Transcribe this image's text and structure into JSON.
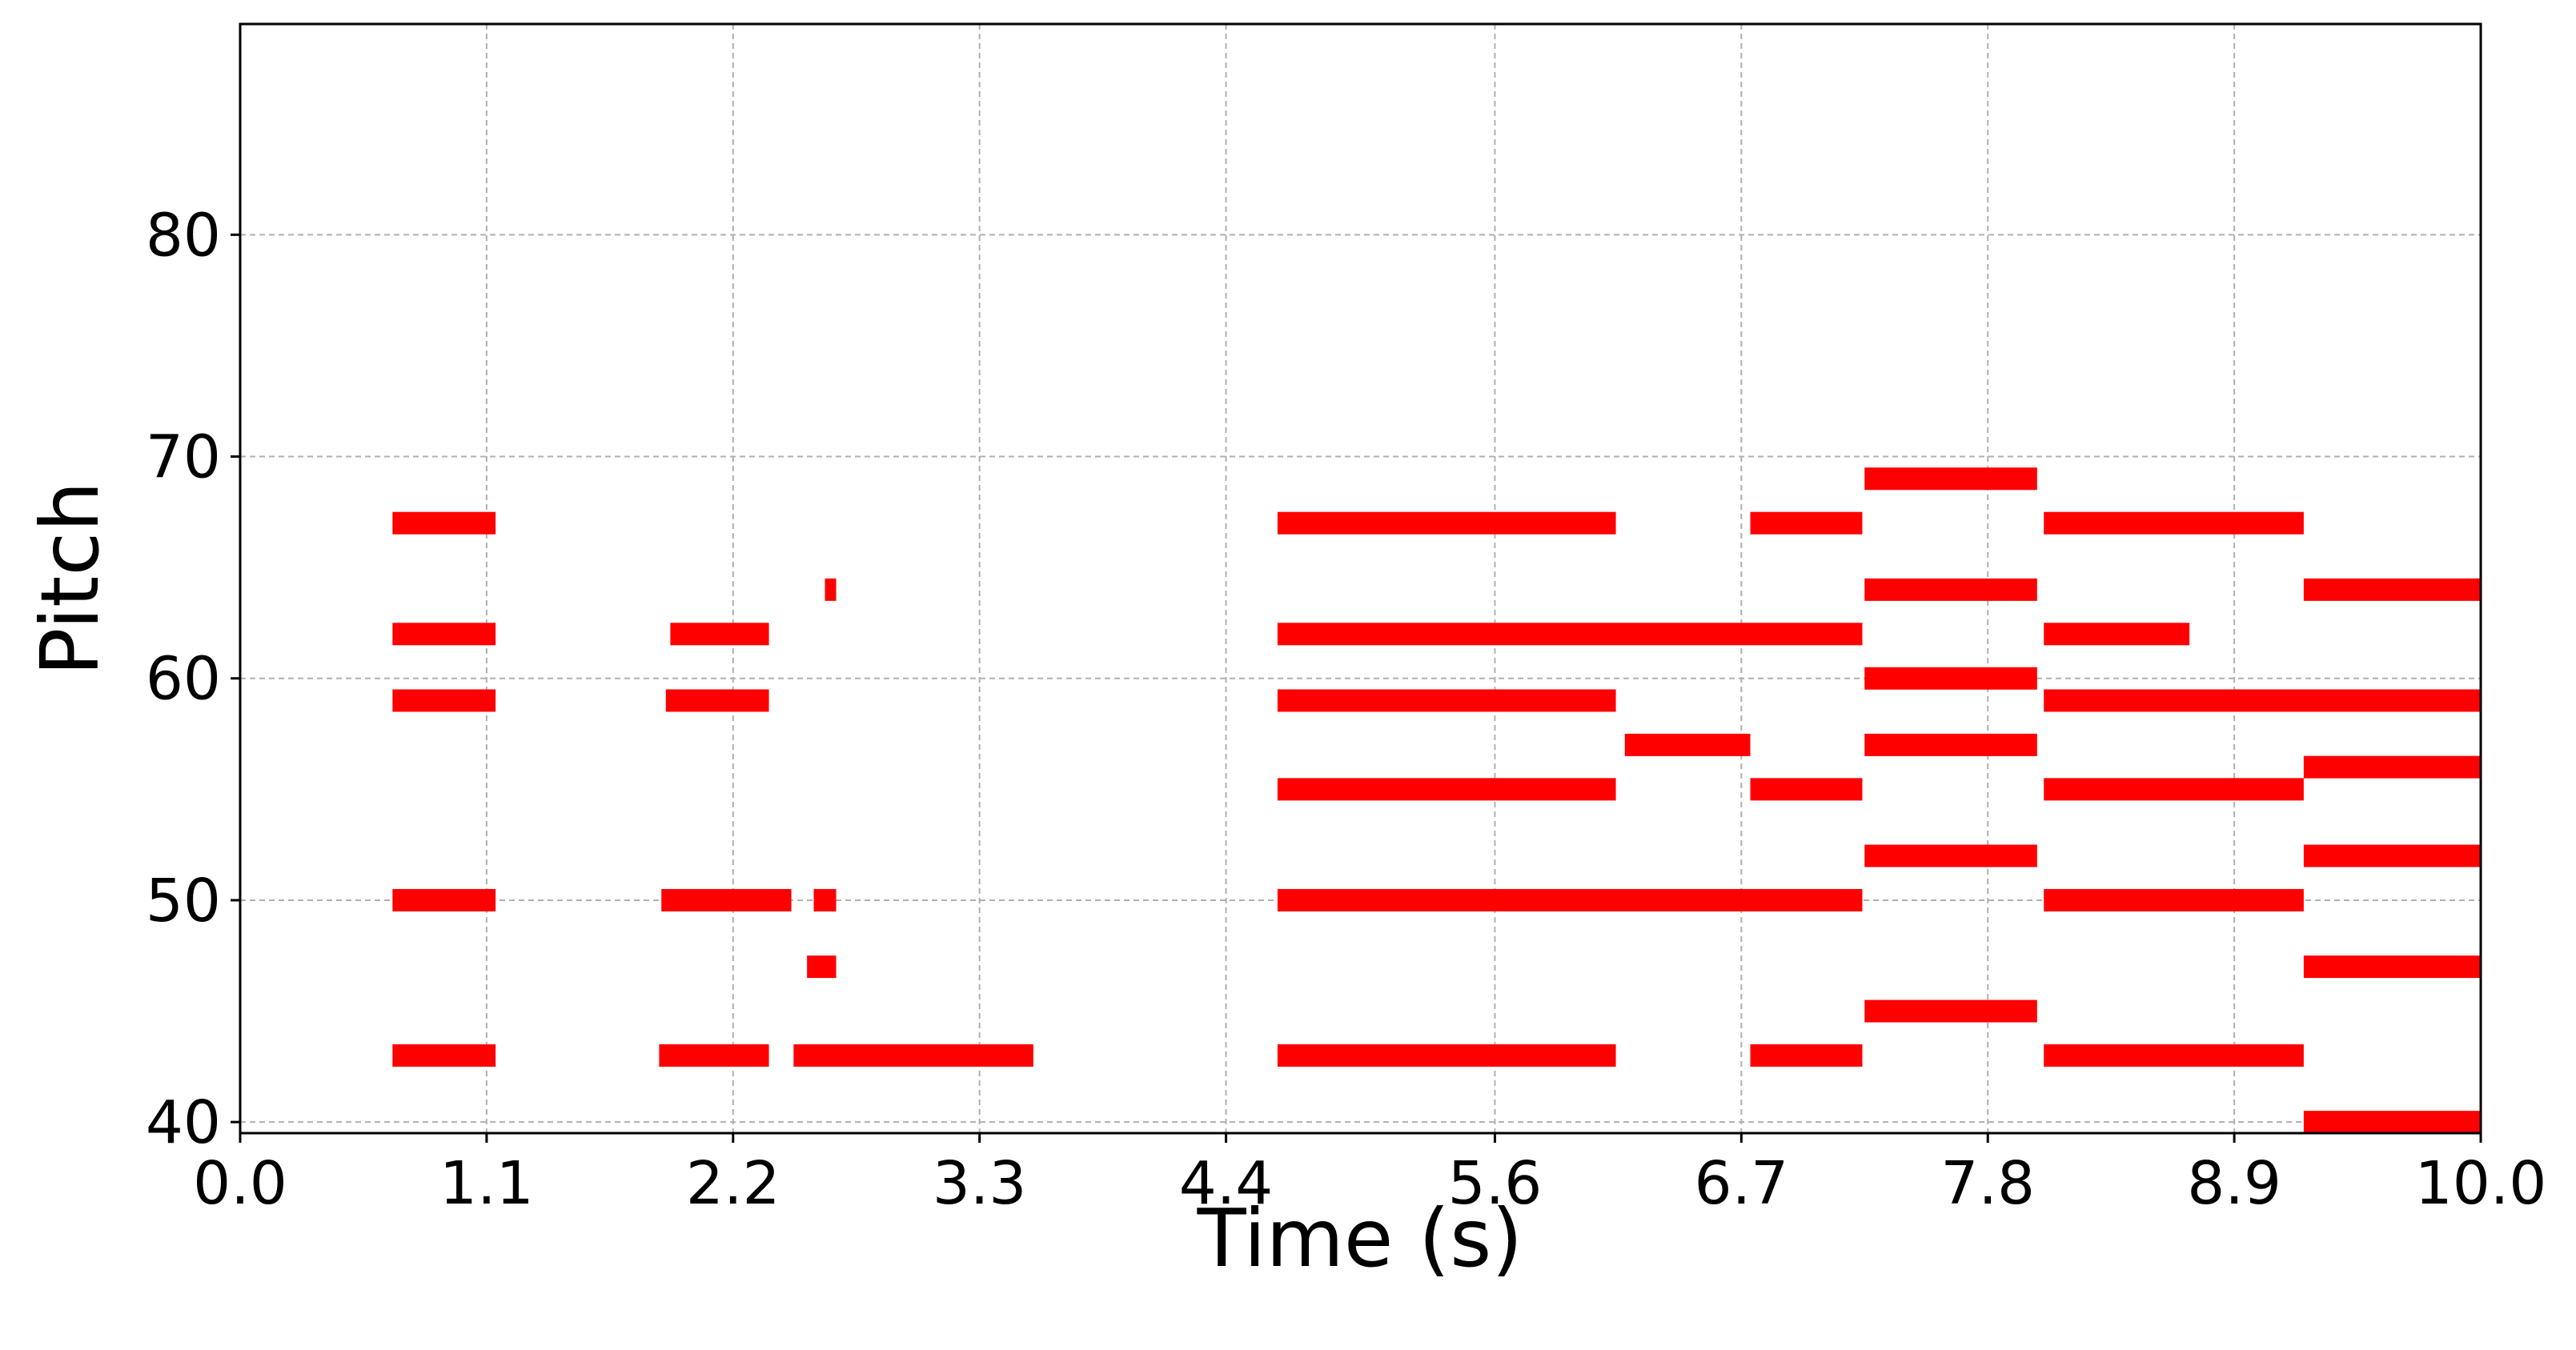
{
  "chart_data": {
    "type": "piano-roll",
    "xlabel": "Time (s)",
    "ylabel": "Pitch",
    "xlim": [
      0.0,
      10.0
    ],
    "ylim": [
      39.5,
      89.5
    ],
    "xticks": [
      0.0,
      1.1,
      2.2,
      3.3,
      4.4,
      5.6,
      6.7,
      7.8,
      8.9,
      10.0
    ],
    "xtick_labels": [
      "0.0",
      "1.1",
      "2.2",
      "3.3",
      "4.4",
      "5.6",
      "6.7",
      "7.8",
      "8.9",
      "10.0"
    ],
    "yticks": [
      40,
      50,
      60,
      70,
      80
    ],
    "ytick_labels": [
      "40",
      "50",
      "60",
      "70",
      "80"
    ],
    "grid": true,
    "note_color": "#ff0000",
    "notes": [
      {
        "pitch": 67,
        "start": 0.68,
        "end": 1.14
      },
      {
        "pitch": 62,
        "start": 0.68,
        "end": 1.14
      },
      {
        "pitch": 59,
        "start": 0.68,
        "end": 1.14
      },
      {
        "pitch": 50,
        "start": 0.68,
        "end": 1.14
      },
      {
        "pitch": 43,
        "start": 0.68,
        "end": 1.14
      },
      {
        "pitch": 62,
        "start": 1.92,
        "end": 2.36
      },
      {
        "pitch": 59,
        "start": 1.9,
        "end": 2.36
      },
      {
        "pitch": 50,
        "start": 1.88,
        "end": 2.46
      },
      {
        "pitch": 43,
        "start": 1.87,
        "end": 2.36
      },
      {
        "pitch": 64,
        "start": 2.61,
        "end": 2.66
      },
      {
        "pitch": 50,
        "start": 2.56,
        "end": 2.66
      },
      {
        "pitch": 47,
        "start": 2.53,
        "end": 2.66
      },
      {
        "pitch": 43,
        "start": 2.47,
        "end": 3.54
      },
      {
        "pitch": 67,
        "start": 4.63,
        "end": 6.14
      },
      {
        "pitch": 62,
        "start": 4.63,
        "end": 7.24
      },
      {
        "pitch": 59,
        "start": 4.63,
        "end": 6.14
      },
      {
        "pitch": 55,
        "start": 4.63,
        "end": 6.14
      },
      {
        "pitch": 50,
        "start": 4.63,
        "end": 7.24
      },
      {
        "pitch": 43,
        "start": 4.63,
        "end": 6.14
      },
      {
        "pitch": 57,
        "start": 6.18,
        "end": 6.74
      },
      {
        "pitch": 67,
        "start": 6.74,
        "end": 7.24
      },
      {
        "pitch": 55,
        "start": 6.74,
        "end": 7.24
      },
      {
        "pitch": 43,
        "start": 6.74,
        "end": 7.24
      },
      {
        "pitch": 69,
        "start": 7.25,
        "end": 8.02
      },
      {
        "pitch": 64,
        "start": 7.25,
        "end": 8.02
      },
      {
        "pitch": 60,
        "start": 7.25,
        "end": 8.02
      },
      {
        "pitch": 57,
        "start": 7.25,
        "end": 8.02
      },
      {
        "pitch": 52,
        "start": 7.25,
        "end": 8.02
      },
      {
        "pitch": 45,
        "start": 7.25,
        "end": 8.02
      },
      {
        "pitch": 67,
        "start": 8.05,
        "end": 9.21
      },
      {
        "pitch": 62,
        "start": 8.05,
        "end": 8.7
      },
      {
        "pitch": 59,
        "start": 8.05,
        "end": 10.0
      },
      {
        "pitch": 55,
        "start": 8.05,
        "end": 9.21
      },
      {
        "pitch": 50,
        "start": 8.05,
        "end": 9.21
      },
      {
        "pitch": 43,
        "start": 8.05,
        "end": 9.21
      },
      {
        "pitch": 64,
        "start": 9.21,
        "end": 10.0
      },
      {
        "pitch": 56,
        "start": 9.21,
        "end": 10.0
      },
      {
        "pitch": 52,
        "start": 9.21,
        "end": 10.0
      },
      {
        "pitch": 47,
        "start": 9.21,
        "end": 10.0
      },
      {
        "pitch": 40,
        "start": 9.21,
        "end": 10.0
      }
    ]
  }
}
